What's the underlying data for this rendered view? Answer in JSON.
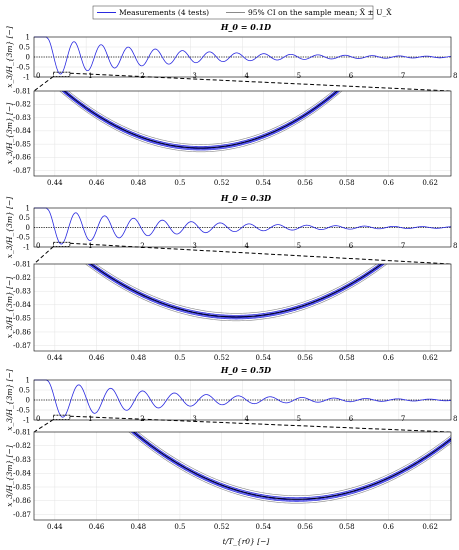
{
  "legend": {
    "measurements": "Measurements (4 tests)",
    "ci": "95% CI on the sample mean; X̄ ± U_X̄"
  },
  "colors": {
    "measurement": "#2a2ae0",
    "ci": "#8a8a8a",
    "mean": "#000000",
    "grid": "#e3e3e3"
  },
  "xlabel": "t/T_{r0} [−]",
  "ylabel": "x_3/H_{3m} [−]",
  "chart_data": [
    {
      "type": "line",
      "title": "H_0 = 0.1D",
      "overview": {
        "x_ticks": [
          "0",
          "1",
          "2",
          "3",
          "4",
          "5",
          "6",
          "7",
          "8"
        ],
        "xlim": [
          0,
          8
        ],
        "ylim": [
          -1,
          1
        ],
        "y_ticks": [
          "1",
          "0.5",
          "0",
          "-0.5",
          "-1"
        ]
      },
      "zoom": {
        "xlim": [
          0.43,
          0.63
        ],
        "ylim": [
          -0.874,
          -0.81
        ],
        "x_ticks": [
          "0.44",
          "0.46",
          "0.48",
          "0.5",
          "0.52",
          "0.54",
          "0.56",
          "0.58",
          "0.6",
          "0.62"
        ],
        "y_ticks": [
          "-0.81",
          "-0.82",
          "-0.83",
          "-0.84",
          "-0.85",
          "-0.86",
          "-0.87"
        ]
      },
      "series_params": {
        "t_release": 0.25,
        "min_value": -0.853,
        "t_min": 0.51,
        "zoom_curvature": 10.0
      }
    },
    {
      "type": "line",
      "title": "H_0 = 0.3D",
      "overview": {
        "x_ticks": [
          "0",
          "1",
          "2",
          "3",
          "4",
          "5",
          "6",
          "7",
          "8"
        ],
        "xlim": [
          0,
          8
        ],
        "ylim": [
          -1,
          1
        ],
        "y_ticks": [
          "1",
          "0.5",
          "0",
          "-0.5",
          "-1"
        ]
      },
      "zoom": {
        "xlim": [
          0.43,
          0.63
        ],
        "ylim": [
          -0.874,
          -0.81
        ],
        "x_ticks": [
          "0.44",
          "0.46",
          "0.48",
          "0.5",
          "0.52",
          "0.54",
          "0.56",
          "0.58",
          "0.6",
          "0.62"
        ],
        "y_ticks": [
          "-0.81",
          "-0.82",
          "-0.83",
          "-0.84",
          "-0.85",
          "-0.86",
          "-0.87"
        ]
      },
      "series_params": {
        "t_release": 0.25,
        "min_value": -0.849,
        "t_min": 0.527,
        "zoom_curvature": 8.0
      }
    },
    {
      "type": "line",
      "title": "H_0 = 0.5D",
      "overview": {
        "x_ticks": [
          "0",
          "1",
          "2",
          "3",
          "4",
          "5",
          "6",
          "7",
          "8"
        ],
        "xlim": [
          0,
          8
        ],
        "ylim": [
          -1,
          1
        ],
        "y_ticks": [
          "1",
          "0.5",
          "0",
          "-0.5",
          "-1"
        ]
      },
      "zoom": {
        "xlim": [
          0.43,
          0.63
        ],
        "ylim": [
          -0.874,
          -0.81
        ],
        "x_ticks": [
          "0.44",
          "0.46",
          "0.48",
          "0.5",
          "0.52",
          "0.54",
          "0.56",
          "0.58",
          "0.6",
          "0.62"
        ],
        "y_ticks": [
          "-0.81",
          "-0.82",
          "-0.83",
          "-0.84",
          "-0.85",
          "-0.86",
          "-0.87"
        ]
      },
      "series_params": {
        "t_release": 0.25,
        "min_value": -0.859,
        "t_min": 0.556,
        "zoom_curvature": 8.0
      }
    }
  ]
}
